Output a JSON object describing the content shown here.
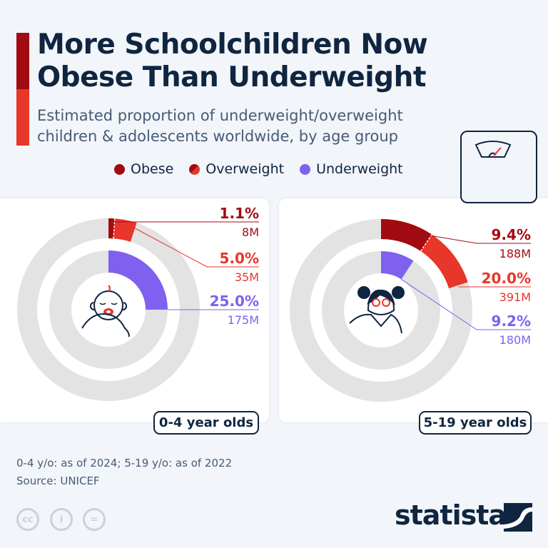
{
  "header": {
    "title_line1": "More Schoolchildren Now",
    "title_line2": "Obese Than Underweight",
    "subtitle_line1": "Estimated proportion of underweight/overweight",
    "subtitle_line2": "children & adolescents worldwide, by age group"
  },
  "legend": [
    {
      "label": "Obese",
      "color": "#a30b12"
    },
    {
      "label": "Overweight",
      "color": "#e8362a"
    },
    {
      "label": "Underweight",
      "color": "#8060ef"
    }
  ],
  "colors": {
    "obese": "#a30b12",
    "overweight": "#e8362a",
    "underweight": "#8060ef",
    "track": "#e3e3e3",
    "navy": "#0f2540"
  },
  "chart_data": [
    {
      "type": "pie",
      "subtype": "radial-donut",
      "group": "0-4 year olds",
      "series": [
        {
          "name": "Obese",
          "percent": 1.1,
          "label": "1.1%",
          "count_label": "8M",
          "ring": "outer"
        },
        {
          "name": "Overweight",
          "percent": 5.0,
          "label": "5.0%",
          "count_label": "35M",
          "ring": "outer"
        },
        {
          "name": "Underweight",
          "percent": 25.0,
          "label": "25.0%",
          "count_label": "175M",
          "ring": "inner"
        }
      ]
    },
    {
      "type": "pie",
      "subtype": "radial-donut",
      "group": "5-19 year olds",
      "series": [
        {
          "name": "Obese",
          "percent": 9.4,
          "label": "9.4%",
          "count_label": "188M",
          "ring": "outer"
        },
        {
          "name": "Overweight",
          "percent": 20.0,
          "label": "20.0%",
          "count_label": "391M",
          "ring": "outer"
        },
        {
          "name": "Underweight",
          "percent": 9.2,
          "label": "9.2%",
          "count_label": "180M",
          "ring": "inner"
        }
      ]
    }
  ],
  "footer": {
    "note": "0-4 y/o: as of 2024; 5-19 y/o: as of 2022",
    "source": "Source: UNICEF",
    "brand": "statista",
    "license_icons": [
      "cc-icon",
      "attribution-icon",
      "no-derivatives-icon"
    ]
  }
}
